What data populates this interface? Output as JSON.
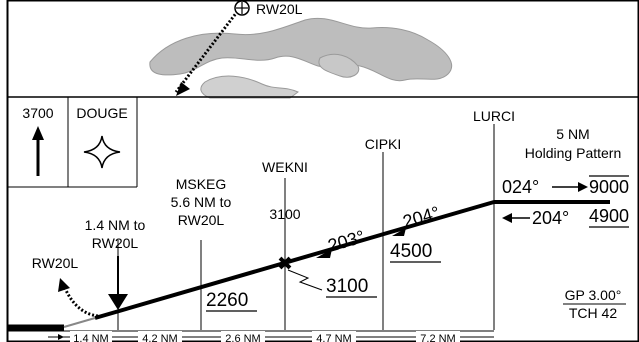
{
  "plan_view": {
    "runway_label": "RW20L"
  },
  "profile": {
    "altitude_box": {
      "value": "3700"
    },
    "fix_box": {
      "name": "DOUGE"
    },
    "holding": {
      "line1": "5 NM",
      "line2": "Holding Pattern",
      "inbound": "024°",
      "inbound_alt": "9000",
      "outbound": "204°",
      "outbound_alt": "4900"
    },
    "fixes": {
      "lurci": "LURCI",
      "cipki": "CIPKI",
      "wekni": "WEKNI",
      "mskeg_line1": "MSKEG",
      "mskeg_line2": "5.6 NM to",
      "mskeg_line3": "RW20L",
      "mapt_line1": "1.4 NM to",
      "mapt_line2": "RW20L",
      "runway": "RW20L"
    },
    "altitudes": {
      "wekni_crossing": "3100",
      "wekni_min": "3100",
      "cipki_min": "4500",
      "mskeg_min": "2260"
    },
    "courses": {
      "segment_a": "203°",
      "segment_b": "204°"
    },
    "glidepath": {
      "gp": "GP 3.00°",
      "tch": "TCH 42"
    },
    "distances": [
      "1.4 NM",
      "4.2 NM",
      "2.6 NM",
      "4.7 NM",
      "7.2 NM"
    ]
  }
}
